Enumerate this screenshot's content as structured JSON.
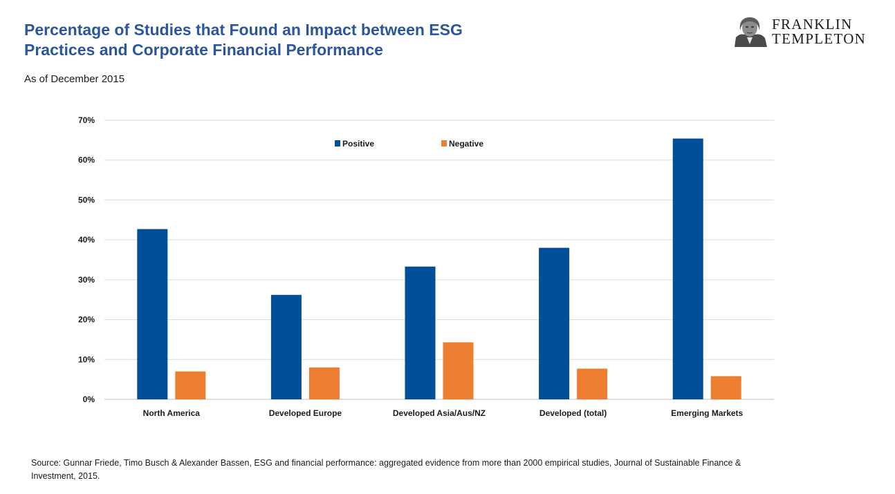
{
  "header": {
    "title_line1": "Percentage of Studies that Found an Impact between ESG",
    "title_line2": "Practices and Corporate Financial Performance",
    "subtitle": "As of December 2015"
  },
  "logo": {
    "line1": "FRANKLIN",
    "line2": "TEMPLETON",
    "icon": "benjamin-franklin-portrait-icon"
  },
  "footer": {
    "source": "Source: Gunnar Friede, Timo Busch & Alexander Bassen, ESG and financial performance: aggregated evidence from more than 2000 empirical studies, Journal of Sustainable Finance & Investment, 2015."
  },
  "colors": {
    "title": "#2b579a",
    "positive": "#004f98",
    "negative": "#ed7d31",
    "grid": "#d9d9d9"
  },
  "chart_data": {
    "type": "bar",
    "title": "Percentage of Studies that Found an Impact between ESG Practices and Corporate Financial Performance",
    "categories": [
      "North America",
      "Developed Europe",
      "Developed Asia/Aus/NZ",
      "Developed (total)",
      "Emerging Markets"
    ],
    "series": [
      {
        "name": "Positive",
        "values": [
          42.7,
          26.2,
          33.3,
          38.0,
          65.4
        ]
      },
      {
        "name": "Negative",
        "values": [
          7.0,
          8.0,
          14.3,
          7.7,
          5.8
        ]
      }
    ],
    "ylim": [
      0,
      70
    ],
    "yticks": [
      0,
      10,
      20,
      30,
      40,
      50,
      60,
      70
    ],
    "ytick_labels": [
      "0%",
      "10%",
      "20%",
      "30%",
      "40%",
      "50%",
      "60%",
      "70%"
    ],
    "xlabel": "",
    "ylabel": "",
    "legend_position": "top-center",
    "grid": true
  }
}
